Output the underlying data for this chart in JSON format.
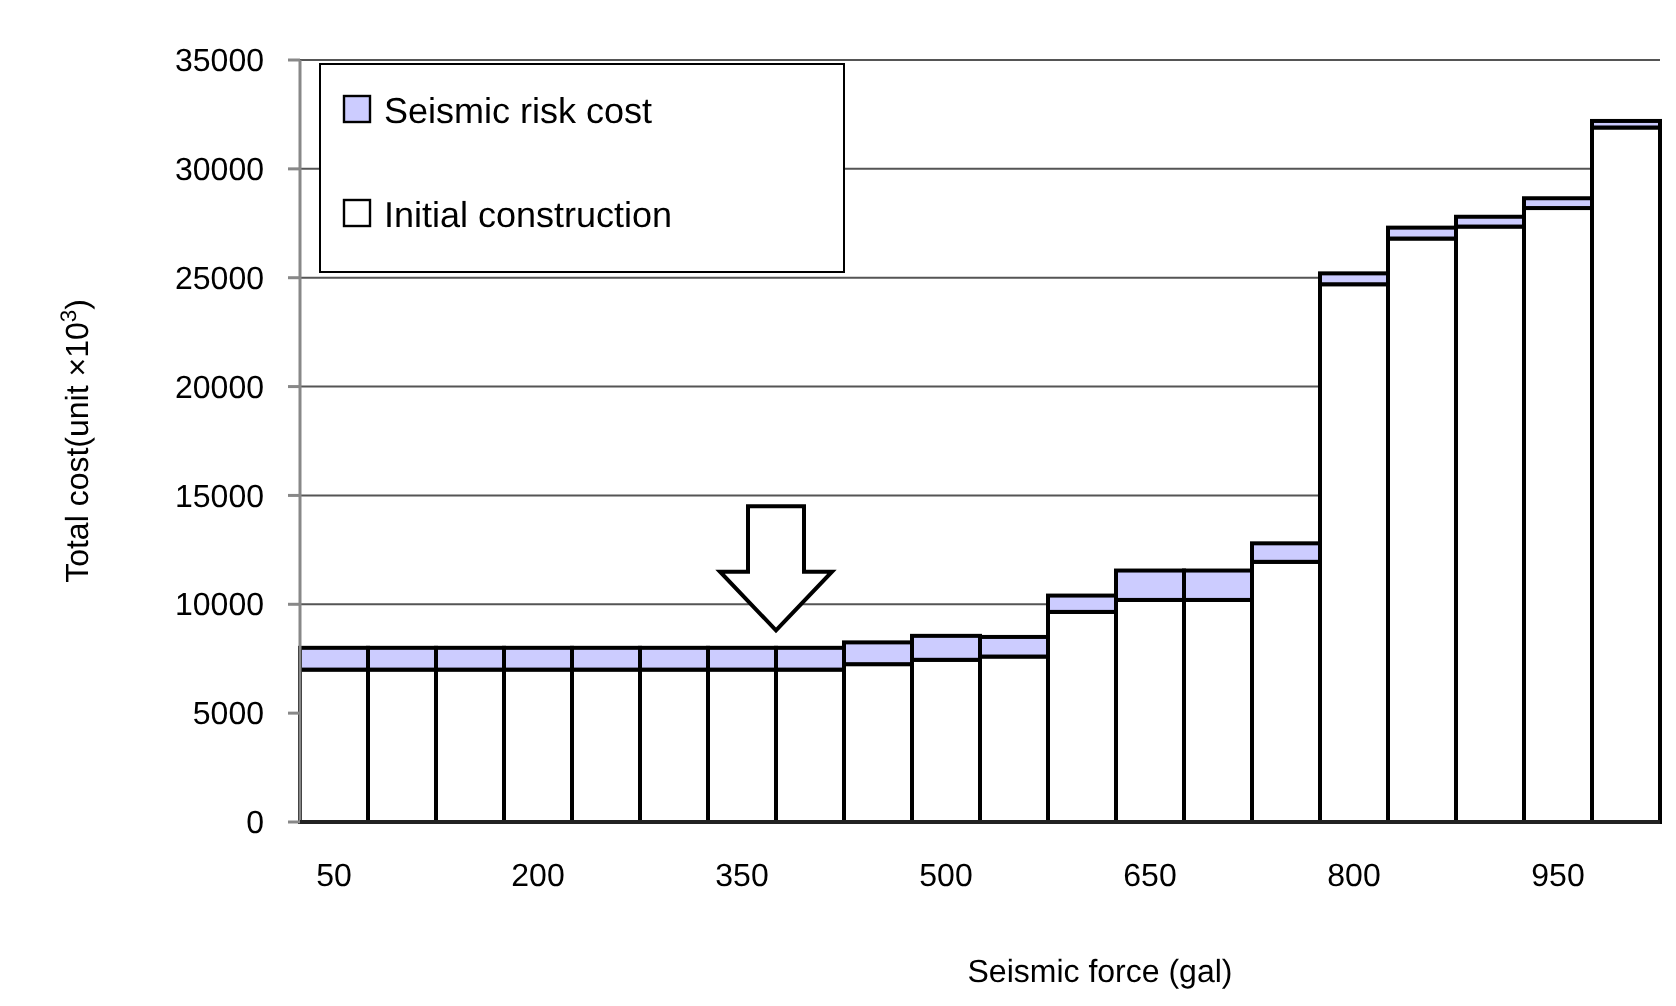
{
  "chart_data": {
    "type": "bar",
    "stacked": true,
    "xlabel": "Seismic force (gal)",
    "ylabel": "Total cost(unit ×10$^{3}$)",
    "categories": [
      "50",
      null,
      null,
      "200",
      null,
      null,
      "350",
      null,
      null,
      "500",
      null,
      null,
      "650",
      null,
      null,
      "800",
      null,
      null,
      "950",
      null
    ],
    "series": [
      {
        "name": "Initial construction",
        "color": "#ffffff",
        "values": [
          7000,
          7000,
          7000,
          7000,
          7000,
          7000,
          7000,
          7000,
          7250,
          7450,
          7600,
          9650,
          10200,
          10200,
          11950,
          24700,
          26800,
          27350,
          28200,
          31900
        ]
      },
      {
        "name": "Seismic risk cost",
        "color": "#ccccff",
        "values": [
          1000,
          1000,
          1000,
          1000,
          1000,
          1000,
          1000,
          1000,
          1000,
          1100,
          900,
          750,
          1350,
          1350,
          850,
          500,
          500,
          450,
          450,
          300
        ]
      }
    ],
    "ylim": [
      0,
      35000
    ],
    "yticks": [
      0,
      5000,
      10000,
      15000,
      20000,
      25000,
      30000,
      35000
    ],
    "grid": "y",
    "legend": "top left"
  }
}
